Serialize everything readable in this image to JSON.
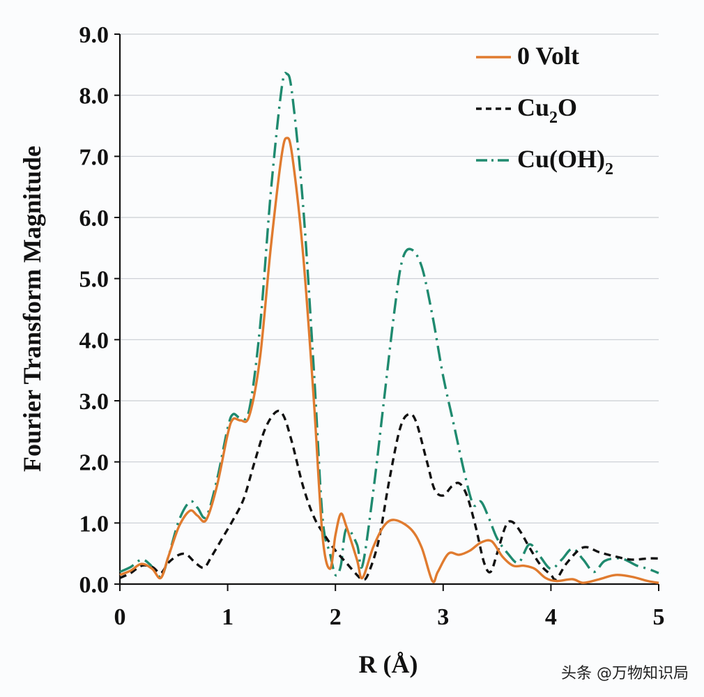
{
  "chart_data": {
    "type": "line",
    "title": "",
    "xlabel": "R (Å)",
    "ylabel": "Fourier Transform Magnitude",
    "xlim": [
      0,
      5
    ],
    "ylim": [
      0,
      9
    ],
    "x_ticks": [
      "0",
      "1",
      "2",
      "3",
      "4",
      "5"
    ],
    "y_ticks": [
      "0.0",
      "1.0",
      "2.0",
      "3.0",
      "4.0",
      "5.0",
      "6.0",
      "7.0",
      "8.0",
      "9.0"
    ],
    "grid": "horizontal",
    "legend_position": "top-right",
    "series": [
      {
        "name": "0 Volt",
        "legend_label": {
          "main": "0 Volt",
          "sub": "",
          "tail": ""
        },
        "color": "#e07b2f",
        "style": "solid",
        "points": [
          [
            0,
            0.15
          ],
          [
            0.1,
            0.22
          ],
          [
            0.2,
            0.33
          ],
          [
            0.3,
            0.25
          ],
          [
            0.38,
            0.1
          ],
          [
            0.45,
            0.45
          ],
          [
            0.55,
            0.95
          ],
          [
            0.65,
            1.2
          ],
          [
            0.72,
            1.12
          ],
          [
            0.8,
            1.05
          ],
          [
            0.9,
            1.6
          ],
          [
            1.0,
            2.45
          ],
          [
            1.05,
            2.7
          ],
          [
            1.12,
            2.68
          ],
          [
            1.2,
            2.75
          ],
          [
            1.3,
            3.7
          ],
          [
            1.4,
            5.5
          ],
          [
            1.5,
            7.0
          ],
          [
            1.55,
            7.3
          ],
          [
            1.6,
            7.0
          ],
          [
            1.7,
            5.4
          ],
          [
            1.8,
            3.0
          ],
          [
            1.88,
            0.8
          ],
          [
            1.95,
            0.25
          ],
          [
            2.0,
            0.8
          ],
          [
            2.05,
            1.15
          ],
          [
            2.1,
            0.95
          ],
          [
            2.2,
            0.4
          ],
          [
            2.25,
            0.1
          ],
          [
            2.35,
            0.6
          ],
          [
            2.45,
            0.95
          ],
          [
            2.55,
            1.05
          ],
          [
            2.7,
            0.9
          ],
          [
            2.8,
            0.6
          ],
          [
            2.9,
            0.05
          ],
          [
            2.95,
            0.2
          ],
          [
            3.05,
            0.5
          ],
          [
            3.15,
            0.48
          ],
          [
            3.25,
            0.55
          ],
          [
            3.35,
            0.68
          ],
          [
            3.45,
            0.7
          ],
          [
            3.55,
            0.45
          ],
          [
            3.65,
            0.3
          ],
          [
            3.75,
            0.3
          ],
          [
            3.85,
            0.25
          ],
          [
            3.95,
            0.1
          ],
          [
            4.05,
            0.05
          ],
          [
            4.2,
            0.08
          ],
          [
            4.3,
            0.02
          ],
          [
            4.45,
            0.08
          ],
          [
            4.6,
            0.15
          ],
          [
            4.75,
            0.12
          ],
          [
            4.9,
            0.05
          ],
          [
            5.0,
            0.02
          ]
        ]
      },
      {
        "name": "Cu2O",
        "legend_label": {
          "main": "Cu",
          "sub": "2",
          "tail": "O"
        },
        "color": "#111111",
        "style": "dashed",
        "points": [
          [
            0,
            0.1
          ],
          [
            0.1,
            0.18
          ],
          [
            0.2,
            0.3
          ],
          [
            0.3,
            0.28
          ],
          [
            0.38,
            0.18
          ],
          [
            0.45,
            0.35
          ],
          [
            0.55,
            0.48
          ],
          [
            0.62,
            0.48
          ],
          [
            0.7,
            0.35
          ],
          [
            0.78,
            0.27
          ],
          [
            0.85,
            0.45
          ],
          [
            0.95,
            0.75
          ],
          [
            1.05,
            1.05
          ],
          [
            1.15,
            1.4
          ],
          [
            1.25,
            2.0
          ],
          [
            1.35,
            2.55
          ],
          [
            1.45,
            2.82
          ],
          [
            1.52,
            2.75
          ],
          [
            1.6,
            2.3
          ],
          [
            1.7,
            1.6
          ],
          [
            1.8,
            1.1
          ],
          [
            1.9,
            0.8
          ],
          [
            2.0,
            0.55
          ],
          [
            2.1,
            0.35
          ],
          [
            2.2,
            0.15
          ],
          [
            2.25,
            0.08
          ],
          [
            2.3,
            0.15
          ],
          [
            2.4,
            0.7
          ],
          [
            2.5,
            1.7
          ],
          [
            2.6,
            2.55
          ],
          [
            2.68,
            2.78
          ],
          [
            2.75,
            2.65
          ],
          [
            2.85,
            2.0
          ],
          [
            2.92,
            1.55
          ],
          [
            3.0,
            1.45
          ],
          [
            3.08,
            1.6
          ],
          [
            3.15,
            1.65
          ],
          [
            3.22,
            1.45
          ],
          [
            3.3,
            0.95
          ],
          [
            3.38,
            0.35
          ],
          [
            3.44,
            0.2
          ],
          [
            3.5,
            0.5
          ],
          [
            3.58,
            0.95
          ],
          [
            3.64,
            1.02
          ],
          [
            3.72,
            0.85
          ],
          [
            3.8,
            0.6
          ],
          [
            3.9,
            0.32
          ],
          [
            4.0,
            0.15
          ],
          [
            4.05,
            0.08
          ],
          [
            4.15,
            0.35
          ],
          [
            4.3,
            0.6
          ],
          [
            4.45,
            0.52
          ],
          [
            4.6,
            0.45
          ],
          [
            4.75,
            0.4
          ],
          [
            4.9,
            0.42
          ],
          [
            5.0,
            0.42
          ]
        ]
      },
      {
        "name": "Cu(OH)2",
        "legend_label": {
          "main": "Cu(OH)",
          "sub": "2",
          "tail": ""
        },
        "color": "#1f8a6f",
        "style": "dashdot",
        "points": [
          [
            0,
            0.2
          ],
          [
            0.1,
            0.28
          ],
          [
            0.2,
            0.4
          ],
          [
            0.28,
            0.32
          ],
          [
            0.38,
            0.12
          ],
          [
            0.45,
            0.45
          ],
          [
            0.55,
            1.05
          ],
          [
            0.65,
            1.35
          ],
          [
            0.72,
            1.25
          ],
          [
            0.8,
            1.1
          ],
          [
            0.9,
            1.7
          ],
          [
            1.0,
            2.55
          ],
          [
            1.05,
            2.78
          ],
          [
            1.12,
            2.72
          ],
          [
            1.2,
            2.85
          ],
          [
            1.3,
            4.2
          ],
          [
            1.4,
            6.4
          ],
          [
            1.5,
            8.1
          ],
          [
            1.55,
            8.35
          ],
          [
            1.6,
            8.0
          ],
          [
            1.7,
            6.2
          ],
          [
            1.8,
            3.5
          ],
          [
            1.88,
            1.1
          ],
          [
            1.95,
            0.5
          ],
          [
            2.0,
            0.15
          ],
          [
            2.05,
            0.3
          ],
          [
            2.1,
            0.9
          ],
          [
            2.2,
            0.65
          ],
          [
            2.25,
            0.3
          ],
          [
            2.35,
            1.5
          ],
          [
            2.45,
            3.0
          ],
          [
            2.55,
            4.5
          ],
          [
            2.62,
            5.3
          ],
          [
            2.7,
            5.48
          ],
          [
            2.8,
            5.2
          ],
          [
            2.9,
            4.4
          ],
          [
            3.0,
            3.4
          ],
          [
            3.1,
            2.6
          ],
          [
            3.2,
            1.8
          ],
          [
            3.28,
            1.3
          ],
          [
            3.35,
            1.35
          ],
          [
            3.42,
            1.1
          ],
          [
            3.5,
            0.75
          ],
          [
            3.6,
            0.5
          ],
          [
            3.7,
            0.35
          ],
          [
            3.8,
            0.65
          ],
          [
            3.9,
            0.45
          ],
          [
            4.0,
            0.25
          ],
          [
            4.1,
            0.4
          ],
          [
            4.2,
            0.58
          ],
          [
            4.3,
            0.4
          ],
          [
            4.4,
            0.2
          ],
          [
            4.5,
            0.38
          ],
          [
            4.65,
            0.42
          ],
          [
            4.8,
            0.3
          ],
          [
            4.9,
            0.25
          ],
          [
            5.0,
            0.18
          ]
        ]
      }
    ]
  },
  "watermark": "头条 @万物知识局"
}
